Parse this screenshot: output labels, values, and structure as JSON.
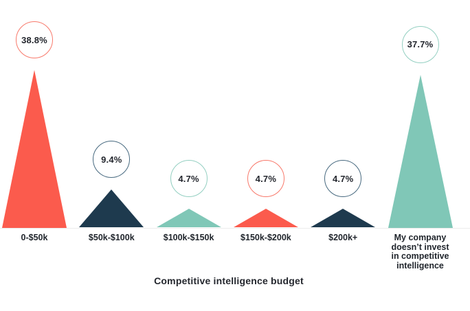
{
  "chart_data": {
    "type": "bar",
    "variant": "triangle-peak-markers",
    "title": "",
    "xlabel": "Competitive intelligence budget",
    "ylabel": "",
    "ylim": [
      0,
      40
    ],
    "grid": false,
    "legend": "none",
    "background": "#ffffff",
    "baseline_color": "#ececec",
    "text_color": "#24272e",
    "categories": [
      "0-$50k",
      "$50k-$100k",
      "$100k-$150k",
      "$150k-$200k",
      "$200k+",
      "My company doesn’t invest in competitive intelligence"
    ],
    "values": [
      38.8,
      9.4,
      4.7,
      4.7,
      4.7,
      37.7
    ],
    "value_labels": [
      "38.8%",
      "9.4%",
      "4.7%",
      "4.7%",
      "4.7%",
      "37.7%"
    ],
    "colors": [
      "#fb5b4d",
      "#1e3a4e",
      "#80c7b7",
      "#fb5b4d",
      "#1e3a4e",
      "#80c7b7"
    ],
    "circle_stroke_colors": [
      "#f8796b",
      "#47697f",
      "#93cfc1",
      "#f8796b",
      "#47697f",
      "#93cfc1"
    ]
  }
}
